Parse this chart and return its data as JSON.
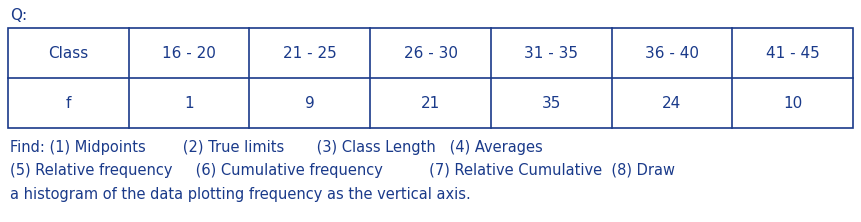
{
  "title": "Q:",
  "col_headers": [
    "Class",
    "16 - 20",
    "21 - 25",
    "26 - 30",
    "31 - 35",
    "36 - 40",
    "41 - 45"
  ],
  "row_label": "f",
  "row_values": [
    "1",
    "9",
    "21",
    "35",
    "24",
    "10"
  ],
  "find_line1": "Find: (1) Midpoints        (2) True limits       (3) Class Length   (4) Averages",
  "find_line2": "(5) Relative frequency     (6) Cumulative frequency          (7) Relative Cumulative  (8) Draw",
  "find_line3": "a histogram of the data plotting frequency as the vertical axis.",
  "text_color": "#1a3a8a",
  "border_color": "#1a3a8a",
  "bg_color": "#ffffff",
  "fig_width": 8.61,
  "fig_height": 2.22,
  "font_size": 11,
  "title_font_size": 11
}
